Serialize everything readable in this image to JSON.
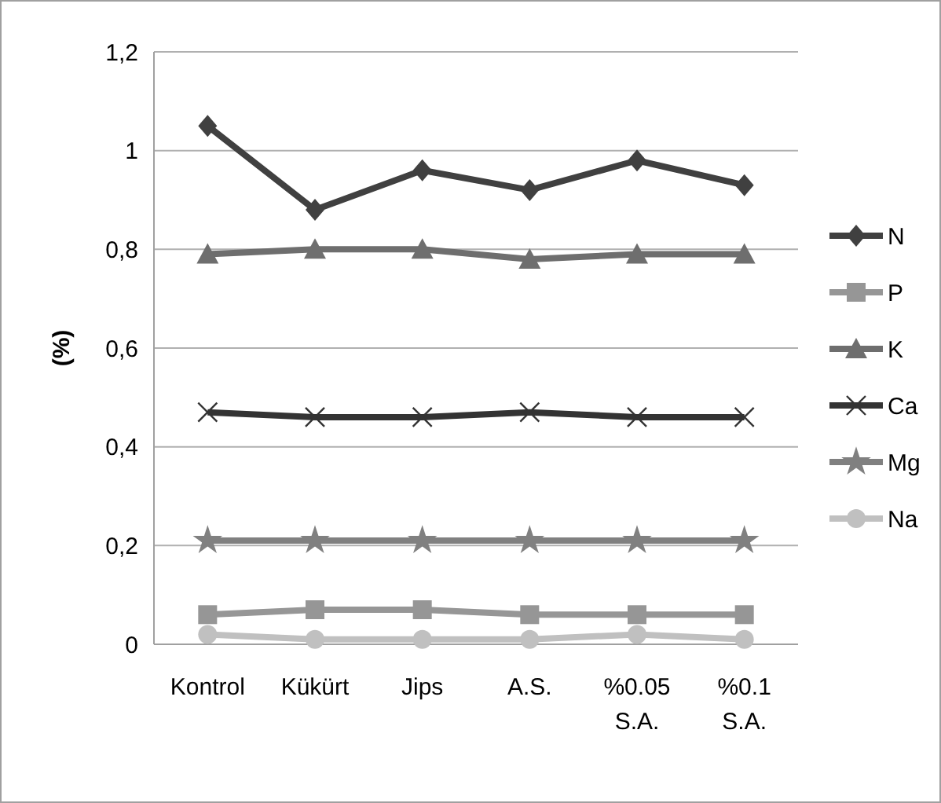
{
  "chart_data": {
    "type": "line",
    "ylabel": "(%)",
    "categories": [
      "Kontrol",
      "Kükürt",
      "Jips",
      "A.S.",
      "%0.05 S.A.",
      "%0.1 S.A."
    ],
    "ylim": [
      0,
      1.2
    ],
    "yticks": [
      0,
      {
        "value": 0.2,
        "label": "0,2"
      },
      {
        "value": 0.4,
        "label": "0,4"
      },
      {
        "value": 0.6,
        "label": "0,6"
      },
      {
        "value": 0.8,
        "label": "0,8"
      },
      1,
      {
        "value": 1.2,
        "label": "1,2"
      }
    ],
    "grid": "y",
    "legend": "right",
    "series": [
      {
        "name": "N",
        "color": "#404040",
        "marker": "diamond",
        "values": [
          1.05,
          0.88,
          0.96,
          0.92,
          0.98,
          0.93
        ]
      },
      {
        "name": "P",
        "color": "#969696",
        "marker": "square",
        "values": [
          0.06,
          0.07,
          0.07,
          0.06,
          0.06,
          0.06
        ]
      },
      {
        "name": "K",
        "color": "#6e6e6e",
        "marker": "triangle",
        "values": [
          0.79,
          0.8,
          0.8,
          0.78,
          0.79,
          0.79
        ]
      },
      {
        "name": "Ca",
        "color": "#333333",
        "marker": "cross",
        "values": [
          0.47,
          0.46,
          0.46,
          0.47,
          0.46,
          0.46
        ]
      },
      {
        "name": "Mg",
        "color": "#808080",
        "marker": "star",
        "values": [
          0.21,
          0.21,
          0.21,
          0.21,
          0.21,
          0.21
        ]
      },
      {
        "name": "Na",
        "color": "#c0c0c0",
        "marker": "circle",
        "values": [
          0.02,
          0.01,
          0.01,
          0.01,
          0.02,
          0.01
        ]
      }
    ]
  }
}
